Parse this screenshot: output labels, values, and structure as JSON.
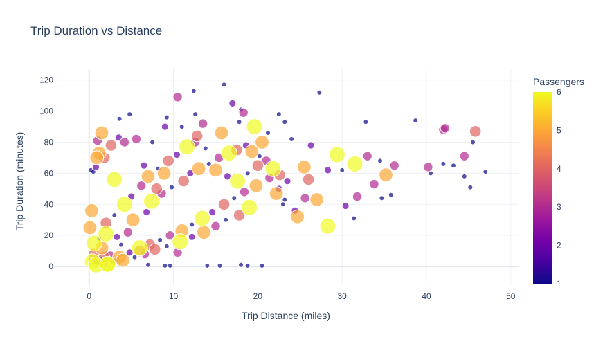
{
  "chart_data": {
    "type": "scatter",
    "title": "Trip Duration vs Distance",
    "xlabel": "Trip Distance (miles)",
    "ylabel": "Trip Duration (minutes)",
    "xlim": [
      -4,
      51
    ],
    "ylim": [
      -12,
      127
    ],
    "xticks": [
      "0",
      "10",
      "20",
      "30",
      "40",
      "50"
    ],
    "yticks": [
      "0",
      "20",
      "40",
      "60",
      "80",
      "100",
      "120"
    ],
    "grid": true,
    "colorbar": {
      "title": "Passengers",
      "min": 1,
      "max": 6,
      "ticks": [
        "1",
        "2",
        "3",
        "4",
        "5",
        "6"
      ],
      "colorscale": [
        "#0d0887",
        "#46039f",
        "#7201a8",
        "#9c179e",
        "#bd3786",
        "#d8576b",
        "#ed7953",
        "#fb9f3a",
        "#fdca26",
        "#f0f921"
      ]
    },
    "points": [
      [
        0.2,
        62,
        1
      ],
      [
        0.5,
        61,
        1
      ],
      [
        0.8,
        64,
        2
      ],
      [
        1.0,
        81,
        3
      ],
      [
        1.5,
        86,
        5
      ],
      [
        0.3,
        36,
        5
      ],
      [
        0.1,
        25,
        5
      ],
      [
        0.6,
        15,
        6
      ],
      [
        0.2,
        5,
        1
      ],
      [
        0.4,
        3,
        6
      ],
      [
        2.2,
        1,
        6
      ],
      [
        3.0,
        56,
        6
      ],
      [
        2.6,
        78,
        4
      ],
      [
        3.5,
        83,
        2
      ],
      [
        4.2,
        80,
        3
      ],
      [
        1.2,
        73,
        5
      ],
      [
        1.8,
        70,
        4
      ],
      [
        0.9,
        70,
        5
      ],
      [
        4.8,
        98,
        1
      ],
      [
        3.6,
        95,
        1
      ],
      [
        6.5,
        65,
        2
      ],
      [
        5.6,
        82,
        3
      ],
      [
        7.5,
        80,
        1
      ],
      [
        8.0,
        50,
        4
      ],
      [
        8.9,
        60,
        5
      ],
      [
        9.2,
        96,
        1
      ],
      [
        9.0,
        90,
        2
      ],
      [
        10.5,
        109,
        3
      ],
      [
        11.0,
        90,
        1
      ],
      [
        12.4,
        113,
        1
      ],
      [
        12.6,
        98,
        1
      ],
      [
        12.8,
        84,
        4
      ],
      [
        13.5,
        92,
        3
      ],
      [
        15.7,
        86,
        5
      ],
      [
        16.0,
        117,
        1
      ],
      [
        17.0,
        105,
        2
      ],
      [
        18.0,
        101,
        1
      ],
      [
        18.3,
        99,
        3
      ],
      [
        17.8,
        93,
        1
      ],
      [
        19.6,
        90,
        6
      ],
      [
        20.5,
        80,
        5
      ],
      [
        21.2,
        86,
        1
      ],
      [
        22.5,
        98,
        1
      ],
      [
        23.2,
        93,
        1
      ],
      [
        24.0,
        82,
        1
      ],
      [
        26.3,
        78,
        2
      ],
      [
        27.3,
        112,
        1
      ],
      [
        25.5,
        64,
        5
      ],
      [
        28.3,
        62,
        2
      ],
      [
        29.4,
        72,
        6
      ],
      [
        31.5,
        66,
        6
      ],
      [
        33.0,
        71,
        3
      ],
      [
        32.8,
        93,
        1
      ],
      [
        34.5,
        68,
        1
      ],
      [
        35.2,
        59,
        5
      ],
      [
        36.2,
        65,
        3
      ],
      [
        33.8,
        53,
        3
      ],
      [
        31.8,
        45,
        3
      ],
      [
        31.4,
        31,
        1
      ],
      [
        30.4,
        39,
        2
      ],
      [
        28.3,
        26,
        6
      ],
      [
        27.0,
        43,
        5
      ],
      [
        26.0,
        56,
        4
      ],
      [
        25.6,
        44,
        3
      ],
      [
        24.7,
        32,
        5
      ],
      [
        23.2,
        43,
        1
      ],
      [
        22.5,
        50,
        2
      ],
      [
        30.0,
        62,
        1
      ],
      [
        35.8,
        46,
        1
      ],
      [
        34.7,
        44,
        1
      ],
      [
        38.7,
        94,
        1
      ],
      [
        40.2,
        64,
        3
      ],
      [
        40.5,
        60,
        1
      ],
      [
        42.0,
        88,
        3
      ],
      [
        42.2,
        89,
        3
      ],
      [
        43.2,
        65,
        1
      ],
      [
        44.5,
        71,
        3
      ],
      [
        45.2,
        51,
        1
      ],
      [
        45.5,
        80,
        1
      ],
      [
        45.8,
        87,
        4
      ],
      [
        47.0,
        61,
        1
      ],
      [
        44.5,
        58,
        1
      ],
      [
        42.0,
        66,
        1
      ],
      [
        7.0,
        1,
        1
      ],
      [
        9.0,
        0.5,
        1
      ],
      [
        9.6,
        0.5,
        1
      ],
      [
        14.0,
        0.5,
        1
      ],
      [
        15.5,
        0.5,
        1
      ],
      [
        18.0,
        1,
        1
      ],
      [
        18.8,
        0.5,
        1
      ],
      [
        20.5,
        0.5,
        1
      ],
      [
        10.5,
        9,
        3
      ],
      [
        6.0,
        10,
        4
      ],
      [
        3.3,
        19,
        2
      ],
      [
        2.0,
        21,
        6
      ],
      [
        1.2,
        18,
        1
      ],
      [
        0.6,
        8,
        4
      ],
      [
        1.5,
        12,
        5
      ],
      [
        0.9,
        3,
        2
      ],
      [
        2.5,
        7,
        3
      ],
      [
        1.8,
        6,
        4
      ],
      [
        3.8,
        14,
        1
      ],
      [
        4.6,
        22,
        3
      ],
      [
        5.2,
        30,
        5
      ],
      [
        6.8,
        35,
        2
      ],
      [
        7.4,
        42,
        6
      ],
      [
        8.6,
        47,
        3
      ],
      [
        9.8,
        51,
        1
      ],
      [
        11.2,
        55,
        4
      ],
      [
        12.0,
        60,
        2
      ],
      [
        13.0,
        63,
        5
      ],
      [
        14.2,
        66,
        1
      ],
      [
        15.4,
        70,
        3
      ],
      [
        16.6,
        73,
        6
      ],
      [
        17.5,
        75,
        4
      ],
      [
        18.6,
        78,
        2
      ],
      [
        19.3,
        74,
        5
      ],
      [
        20.2,
        71,
        1
      ],
      [
        21.0,
        68,
        3
      ],
      [
        21.8,
        63,
        6
      ],
      [
        22.6,
        59,
        4
      ],
      [
        23.5,
        55,
        2
      ],
      [
        19.8,
        52,
        5
      ],
      [
        18.4,
        48,
        3
      ],
      [
        17.2,
        44,
        1
      ],
      [
        16.0,
        40,
        4
      ],
      [
        14.6,
        35,
        2
      ],
      [
        13.4,
        31,
        6
      ],
      [
        12.2,
        27,
        1
      ],
      [
        11.0,
        23,
        5
      ],
      [
        9.6,
        20,
        3
      ],
      [
        8.4,
        17,
        1
      ],
      [
        7.2,
        14,
        4
      ],
      [
        6.0,
        12,
        6
      ],
      [
        4.8,
        9,
        2
      ],
      [
        3.6,
        6,
        5
      ],
      [
        2.6,
        4,
        1
      ],
      [
        1.6,
        2,
        3
      ],
      [
        0.8,
        1,
        6
      ],
      [
        2.0,
        28,
        4
      ],
      [
        3.0,
        33,
        1
      ],
      [
        4.2,
        40,
        6
      ],
      [
        5.0,
        45,
        2
      ],
      [
        6.2,
        52,
        3
      ],
      [
        7.0,
        58,
        5
      ],
      [
        8.2,
        63,
        1
      ],
      [
        9.4,
        68,
        4
      ],
      [
        10.4,
        72,
        2
      ],
      [
        11.6,
        77,
        6
      ],
      [
        12.6,
        80,
        3
      ],
      [
        13.8,
        76,
        1
      ],
      [
        15.0,
        62,
        5
      ],
      [
        16.4,
        58,
        2
      ],
      [
        17.6,
        55,
        6
      ],
      [
        18.8,
        60,
        1
      ],
      [
        20.0,
        65,
        4
      ],
      [
        21.4,
        57,
        3
      ],
      [
        22.2,
        47,
        5
      ],
      [
        23.0,
        40,
        1
      ],
      [
        24.4,
        36,
        2
      ],
      [
        19.0,
        38,
        6
      ],
      [
        17.8,
        33,
        4
      ],
      [
        16.2,
        30,
        1
      ],
      [
        15.0,
        26,
        3
      ],
      [
        13.6,
        22,
        5
      ],
      [
        12.2,
        19,
        2
      ],
      [
        10.8,
        16,
        6
      ],
      [
        9.2,
        13,
        1
      ],
      [
        7.8,
        11,
        4
      ],
      [
        6.6,
        8,
        3
      ],
      [
        5.4,
        6,
        1
      ],
      [
        4.0,
        4,
        5
      ],
      [
        3.0,
        3,
        2
      ],
      [
        2.2,
        1.5,
        6
      ],
      [
        1.4,
        5,
        1
      ]
    ]
  }
}
